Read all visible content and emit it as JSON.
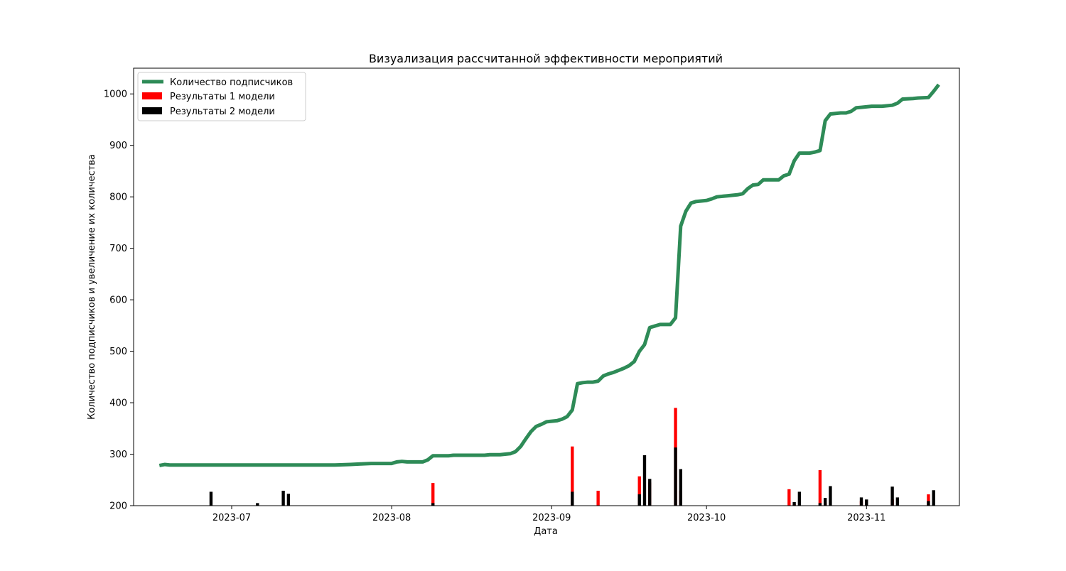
{
  "chart_data": {
    "type": "line",
    "title": "Визуализация рассчитанной эффективности мероприятий",
    "xlabel": "Дата",
    "ylabel": "Количество подписчиков и увеличение их количества",
    "xlim": [
      "2023-06-12",
      "2023-11-19"
    ],
    "ylim": [
      200,
      1050
    ],
    "x_ticks": [
      "2023-07-01",
      "2023-08-01",
      "2023-09-01",
      "2023-10-01",
      "2023-11-01"
    ],
    "x_tick_labels": [
      "2023-07",
      "2023-08",
      "2023-09",
      "2023-10",
      "2023-11"
    ],
    "y_ticks": [
      200,
      300,
      400,
      500,
      600,
      700,
      800,
      900,
      1000
    ],
    "grid": false,
    "legend_position": "top-left",
    "legend": [
      "Количество подписчиков",
      "Результаты 1 модели",
      "Результаты 2 модели"
    ],
    "colors": {
      "line": "#2e8b57",
      "model1": "#ff0000",
      "model2": "#000000"
    },
    "line_series": {
      "name": "Количество подписчиков",
      "points": [
        [
          "2023-06-17",
          278
        ],
        [
          "2023-06-18",
          280
        ],
        [
          "2023-06-19",
          279
        ],
        [
          "2023-07-01",
          279
        ],
        [
          "2023-07-19",
          279
        ],
        [
          "2023-07-21",
          279
        ],
        [
          "2023-07-24",
          280
        ],
        [
          "2023-07-26",
          281
        ],
        [
          "2023-07-28",
          282
        ],
        [
          "2023-08-01",
          282
        ],
        [
          "2023-08-02",
          285
        ],
        [
          "2023-08-03",
          286
        ],
        [
          "2023-08-04",
          285
        ],
        [
          "2023-08-06",
          285
        ],
        [
          "2023-08-07",
          285
        ],
        [
          "2023-08-08",
          289
        ],
        [
          "2023-08-09",
          297
        ],
        [
          "2023-08-12",
          297
        ],
        [
          "2023-08-13",
          298
        ],
        [
          "2023-08-19",
          298
        ],
        [
          "2023-08-20",
          299
        ],
        [
          "2023-08-22",
          299
        ],
        [
          "2023-08-24",
          301
        ],
        [
          "2023-08-25",
          305
        ],
        [
          "2023-08-26",
          315
        ],
        [
          "2023-08-27",
          330
        ],
        [
          "2023-08-28",
          344
        ],
        [
          "2023-08-29",
          354
        ],
        [
          "2023-08-30",
          358
        ],
        [
          "2023-08-31",
          363
        ],
        [
          "2023-09-02",
          365
        ],
        [
          "2023-09-03",
          368
        ],
        [
          "2023-09-04",
          373
        ],
        [
          "2023-09-05",
          386
        ],
        [
          "2023-09-06",
          437
        ],
        [
          "2023-09-07",
          439
        ],
        [
          "2023-09-08",
          440
        ],
        [
          "2023-09-09",
          440
        ],
        [
          "2023-09-10",
          442
        ],
        [
          "2023-09-11",
          452
        ],
        [
          "2023-09-12",
          456
        ],
        [
          "2023-09-13",
          459
        ],
        [
          "2023-09-14",
          463
        ],
        [
          "2023-09-15",
          467
        ],
        [
          "2023-09-16",
          472
        ],
        [
          "2023-09-17",
          480
        ],
        [
          "2023-09-18",
          500
        ],
        [
          "2023-09-19",
          513
        ],
        [
          "2023-09-20",
          546
        ],
        [
          "2023-09-21",
          549
        ],
        [
          "2023-09-22",
          552
        ],
        [
          "2023-09-24",
          552
        ],
        [
          "2023-09-25",
          565
        ],
        [
          "2023-09-26",
          743
        ],
        [
          "2023-09-27",
          772
        ],
        [
          "2023-09-28",
          788
        ],
        [
          "2023-09-29",
          791
        ],
        [
          "2023-09-30",
          792
        ],
        [
          "2023-10-01",
          793
        ],
        [
          "2023-10-02",
          796
        ],
        [
          "2023-10-03",
          800
        ],
        [
          "2023-10-05",
          802
        ],
        [
          "2023-10-07",
          804
        ],
        [
          "2023-10-08",
          806
        ],
        [
          "2023-10-09",
          816
        ],
        [
          "2023-10-10",
          823
        ],
        [
          "2023-10-11",
          824
        ],
        [
          "2023-10-12",
          833
        ],
        [
          "2023-10-15",
          833
        ],
        [
          "2023-10-16",
          841
        ],
        [
          "2023-10-17",
          844
        ],
        [
          "2023-10-18",
          870
        ],
        [
          "2023-10-19",
          885
        ],
        [
          "2023-10-21",
          885
        ],
        [
          "2023-10-22",
          887
        ],
        [
          "2023-10-23",
          890
        ],
        [
          "2023-10-24",
          948
        ],
        [
          "2023-10-25",
          961
        ],
        [
          "2023-10-27",
          963
        ],
        [
          "2023-10-28",
          963
        ],
        [
          "2023-10-29",
          966
        ],
        [
          "2023-10-30",
          973
        ],
        [
          "2023-10-31",
          974
        ],
        [
          "2023-11-02",
          976
        ],
        [
          "2023-11-04",
          976
        ],
        [
          "2023-11-06",
          978
        ],
        [
          "2023-11-07",
          982
        ],
        [
          "2023-11-08",
          990
        ],
        [
          "2023-11-10",
          991
        ],
        [
          "2023-11-11",
          992
        ],
        [
          "2023-11-13",
          993
        ],
        [
          "2023-11-14",
          1005
        ],
        [
          "2023-11-15",
          1018
        ]
      ]
    },
    "bar_series": [
      {
        "name": "Результаты 1 модели",
        "points": [
          [
            "2023-08-09",
            244
          ],
          [
            "2023-09-05",
            315
          ],
          [
            "2023-09-10",
            229
          ],
          [
            "2023-09-18",
            257
          ],
          [
            "2023-09-20",
            245
          ],
          [
            "2023-09-25",
            390
          ],
          [
            "2023-09-26",
            229
          ],
          [
            "2023-10-17",
            232
          ],
          [
            "2023-10-18",
            203
          ],
          [
            "2023-10-23",
            269
          ],
          [
            "2023-10-24",
            205
          ],
          [
            "2023-10-31",
            209
          ],
          [
            "2023-11-06",
            212
          ],
          [
            "2023-11-13",
            222
          ]
        ]
      },
      {
        "name": "Результаты 2 модели",
        "points": [
          [
            "2023-06-27",
            227
          ],
          [
            "2023-07-06",
            205
          ],
          [
            "2023-07-11",
            229
          ],
          [
            "2023-07-12",
            223
          ],
          [
            "2023-08-09",
            205
          ],
          [
            "2023-09-05",
            227
          ],
          [
            "2023-09-18",
            222
          ],
          [
            "2023-09-19",
            298
          ],
          [
            "2023-09-20",
            252
          ],
          [
            "2023-09-25",
            313
          ],
          [
            "2023-09-26",
            271
          ],
          [
            "2023-10-18",
            207
          ],
          [
            "2023-10-19",
            227
          ],
          [
            "2023-10-23",
            205
          ],
          [
            "2023-10-24",
            215
          ],
          [
            "2023-10-25",
            238
          ],
          [
            "2023-10-31",
            216
          ],
          [
            "2023-11-01",
            212
          ],
          [
            "2023-11-06",
            237
          ],
          [
            "2023-11-07",
            216
          ],
          [
            "2023-11-13",
            209
          ],
          [
            "2023-11-14",
            230
          ]
        ]
      }
    ]
  }
}
